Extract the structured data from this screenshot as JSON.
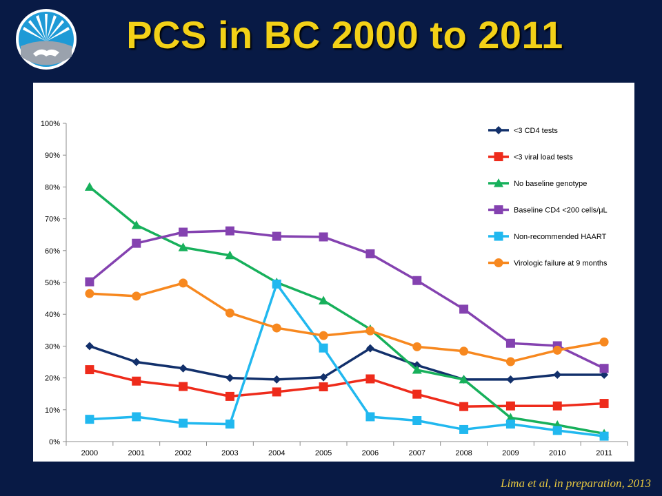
{
  "title": "PCS in BC 2000 to 2011",
  "citation": "Lima et al, in preparation, 2013",
  "logo": {
    "icon": "sun-handshake-logo"
  },
  "chart_data": {
    "type": "line",
    "title": "",
    "xlabel": "",
    "ylabel": "",
    "categories": [
      "2000",
      "2001",
      "2002",
      "2003",
      "2004",
      "2005",
      "2006",
      "2007",
      "2008",
      "2009",
      "2010",
      "2011"
    ],
    "ylim": [
      0,
      100
    ],
    "y_ticks": [
      "0%",
      "10%",
      "20%",
      "30%",
      "40%",
      "50%",
      "60%",
      "70%",
      "80%",
      "90%",
      "100%"
    ],
    "grid": false,
    "legend_position": "top-right",
    "series": [
      {
        "name": "<3 CD4 tests",
        "color": "#12306b",
        "marker": "diamond",
        "values": [
          30,
          25,
          23,
          20,
          19.5,
          20.2,
          29.3,
          24,
          19.5,
          19.5,
          21,
          21
        ]
      },
      {
        "name": "<3 viral load tests",
        "color": "#ee2b1b",
        "marker": "square",
        "values": [
          22.6,
          19,
          17.3,
          14.2,
          15.6,
          17.2,
          19.7,
          14.9,
          11,
          11.2,
          11.2,
          12
        ]
      },
      {
        "name": "No baseline genotype",
        "color": "#17b05b",
        "marker": "triangle",
        "values": [
          80,
          68,
          61,
          58.5,
          50,
          44.3,
          35.3,
          22.5,
          19.5,
          7.5,
          5.2,
          2.5
        ]
      },
      {
        "name": "Baseline CD4 <200 cells/μL",
        "color": "#8442b0",
        "marker": "square",
        "values": [
          50.2,
          62.3,
          65.8,
          66.2,
          64.5,
          64.3,
          59,
          50.6,
          41.6,
          30.9,
          30.1,
          23
        ]
      },
      {
        "name": "Non-recommended HAART",
        "color": "#21b8ef",
        "marker": "square",
        "values": [
          7,
          7.8,
          5.8,
          5.5,
          49.5,
          29.4,
          7.8,
          6.6,
          3.8,
          5.5,
          3.5,
          1.7
        ]
      },
      {
        "name": "Virologic failure at 9 months",
        "color": "#f7881f",
        "marker": "circle",
        "values": [
          46.5,
          45.7,
          49.8,
          40.4,
          35.7,
          33.3,
          34.8,
          29.8,
          28.4,
          25.1,
          28.7,
          31.3
        ]
      }
    ]
  }
}
